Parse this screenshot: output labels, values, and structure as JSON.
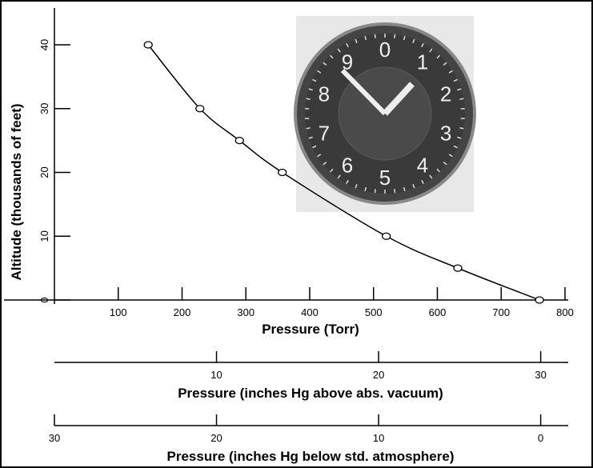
{
  "chart_data": {
    "type": "line",
    "ylabel": "Altitude (thousands of feet)",
    "xlabel": "Pressure (Torr)",
    "x": [
      147,
      228,
      290,
      357,
      520,
      632,
      760
    ],
    "series": [
      {
        "values": [
          40,
          30,
          25,
          20,
          10,
          5,
          0
        ],
        "color": "#000000"
      }
    ],
    "xlim": [
      0,
      800
    ],
    "xticks": [
      100,
      200,
      300,
      400,
      500,
      600,
      700,
      800
    ],
    "ylim": [
      0,
      40
    ],
    "yticks": [
      0,
      10,
      20,
      30,
      40
    ],
    "secondary_x_axes": [
      {
        "label": "Pressure (inches Hg above abs. vacuum)",
        "lim": [
          0,
          31.5
        ],
        "ticks": [
          10,
          20,
          30
        ]
      },
      {
        "label": "Pressure (inches Hg below std. atmosphere)",
        "lim": [
          30,
          -1.5
        ],
        "ticks": [
          30,
          20,
          10,
          0
        ]
      }
    ],
    "inset_dial_labels": [
      "0",
      "1",
      "2",
      "3",
      "4",
      "5",
      "6",
      "7",
      "8",
      "9"
    ]
  }
}
